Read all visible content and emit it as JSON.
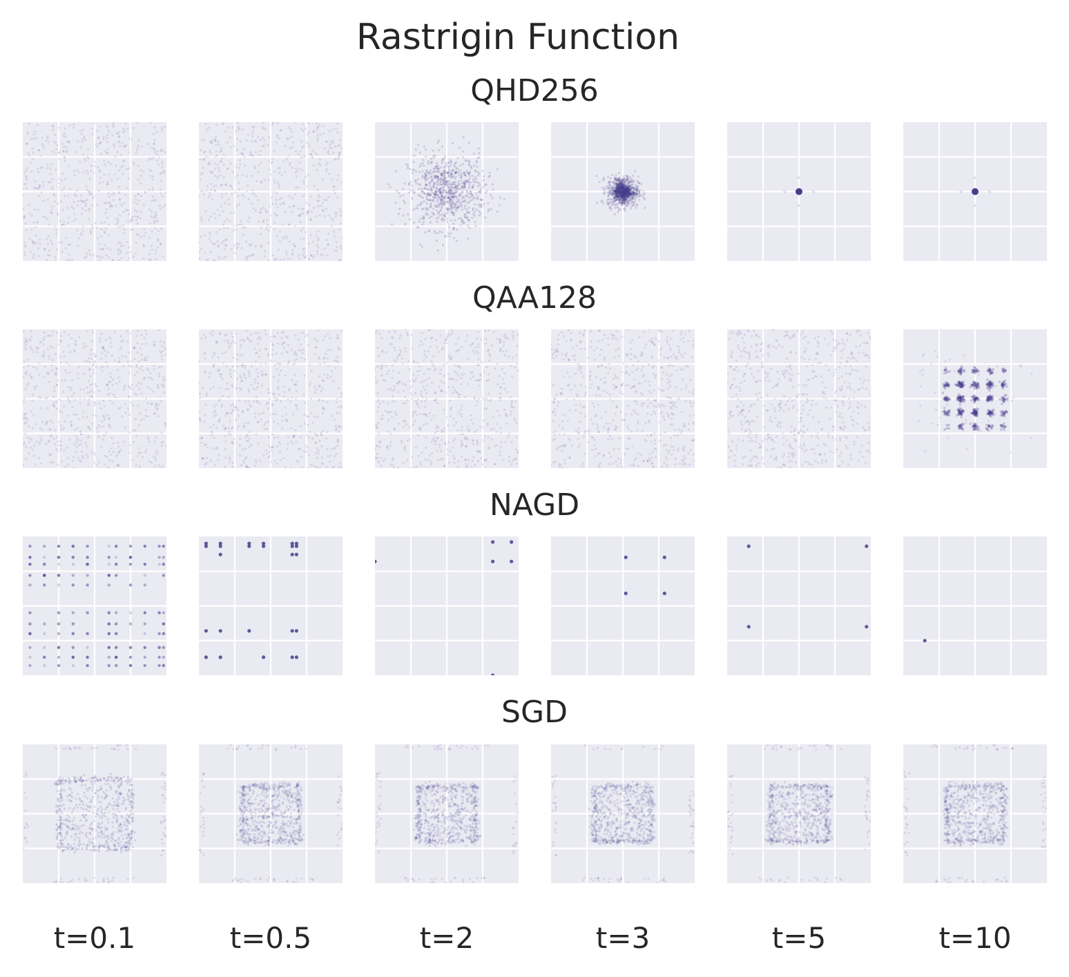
{
  "chart_data": {
    "type": "scatter",
    "title": "Rastrigin Function",
    "rows": [
      {
        "name": "QHD256",
        "panels": [
          {
            "t": "t=0.1",
            "distribution": "uniform",
            "n": 600
          },
          {
            "t": "t=0.5",
            "distribution": "uniform",
            "n": 600
          },
          {
            "t": "t=2",
            "distribution": "gaussian",
            "center": [
              0,
              0
            ],
            "sigma": 0.45,
            "n": 800
          },
          {
            "t": "t=3",
            "distribution": "gaussian",
            "center": [
              0,
              0
            ],
            "sigma": 0.18,
            "n": 700
          },
          {
            "t": "t=5",
            "distribution": "point",
            "points": [
              [
                0,
                0
              ]
            ]
          },
          {
            "t": "t=10",
            "distribution": "point",
            "points": [
              [
                0,
                0
              ]
            ]
          }
        ]
      },
      {
        "name": "QAA128",
        "panels": [
          {
            "t": "t=0.1",
            "distribution": "uniform",
            "n": 600
          },
          {
            "t": "t=0.5",
            "distribution": "uniform",
            "n": 600
          },
          {
            "t": "t=2",
            "distribution": "uniform",
            "n": 600
          },
          {
            "t": "t=3",
            "distribution": "uniform",
            "n": 600
          },
          {
            "t": "t=5",
            "distribution": "uniform",
            "n": 600
          },
          {
            "t": "t=10",
            "distribution": "lattice",
            "centers_min": -2,
            "centers_max": 2,
            "sigma": 0.06,
            "n": 700
          }
        ]
      },
      {
        "name": "NAGD",
        "panels": [
          {
            "t": "t=0.1",
            "distribution": "grid-minima",
            "n": 350
          },
          {
            "t": "t=0.5",
            "distribution": "points",
            "points": [
              [
                -4.5,
                4.5
              ],
              [
                -4.5,
                4.3
              ],
              [
                -3.5,
                4.5
              ],
              [
                -3.5,
                4.3
              ],
              [
                -1.5,
                4.5
              ],
              [
                -1.5,
                4.3
              ],
              [
                -0.5,
                4.5
              ],
              [
                -0.5,
                4.3
              ],
              [
                1.5,
                4.5
              ],
              [
                1.5,
                4.3
              ],
              [
                1.8,
                4.5
              ],
              [
                1.8,
                4.3
              ],
              [
                -3.5,
                3.7
              ],
              [
                1.5,
                3.7
              ],
              [
                1.8,
                3.7
              ],
              [
                -4.5,
                -1.8
              ],
              [
                -3.5,
                -1.8
              ],
              [
                -1.5,
                -1.8
              ],
              [
                1.5,
                -1.8
              ],
              [
                1.8,
                -1.8
              ],
              [
                -4.5,
                -3.7
              ],
              [
                -3.5,
                -3.7
              ],
              [
                -0.5,
                -3.7
              ],
              [
                1.5,
                -3.7
              ],
              [
                1.8,
                -3.7
              ]
            ]
          },
          {
            "t": "t=2",
            "distribution": "points",
            "points": [
              [
                3.2,
                4.6
              ],
              [
                4.5,
                4.6
              ],
              [
                3.2,
                3.2
              ],
              [
                4.5,
                3.2
              ],
              [
                3.2,
                -5.0
              ],
              [
                -5.0,
                3.2
              ]
            ]
          },
          {
            "t": "t=3",
            "distribution": "points",
            "points": [
              [
                0.2,
                3.5
              ],
              [
                2.9,
                3.5
              ],
              [
                0.2,
                0.9
              ],
              [
                2.9,
                0.9
              ]
            ]
          },
          {
            "t": "t=5",
            "distribution": "points",
            "points": [
              [
                -3.5,
                4.3
              ],
              [
                4.7,
                4.3
              ],
              [
                -3.5,
                -1.5
              ],
              [
                4.7,
                -1.5
              ]
            ]
          },
          {
            "t": "t=10",
            "distribution": "points",
            "points": [
              [
                -3.5,
                -2.5
              ]
            ]
          }
        ]
      },
      {
        "name": "SGD",
        "panels": [
          {
            "t": "t=0.1",
            "distribution": "box",
            "box": [
              -2.5,
              2.5
            ],
            "n": 700
          },
          {
            "t": "t=0.5",
            "distribution": "box",
            "box": [
              -2,
              2
            ],
            "n": 700
          },
          {
            "t": "t=2",
            "distribution": "box",
            "box": [
              -2,
              2
            ],
            "n": 700
          },
          {
            "t": "t=3",
            "distribution": "box",
            "box": [
              -2,
              2
            ],
            "n": 700
          },
          {
            "t": "t=5",
            "distribution": "box",
            "box": [
              -2,
              2
            ],
            "n": 700
          },
          {
            "t": "t=10",
            "distribution": "box",
            "box": [
              -2,
              2
            ],
            "n": 700
          }
        ]
      }
    ],
    "column_labels": [
      "t=0.1",
      "t=0.5",
      "t=2",
      "t=3",
      "t=5",
      "t=10"
    ],
    "xlim": [
      -5,
      5
    ],
    "ylim": [
      -5,
      5
    ],
    "grid": true,
    "colors": {
      "point": "#483d8b",
      "panel_bg": "#eaeaf2",
      "grid": "#ffffff"
    }
  }
}
